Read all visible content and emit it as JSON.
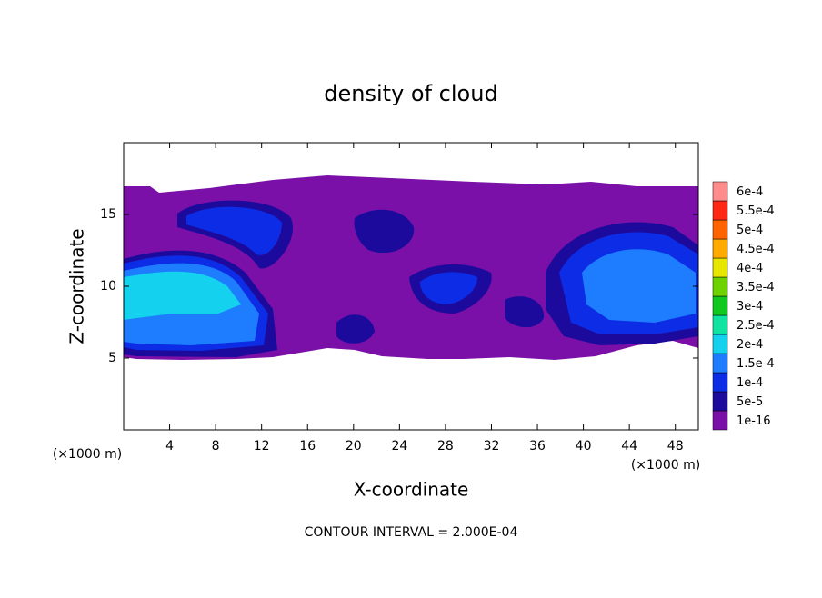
{
  "chart_data": {
    "type": "contour",
    "title": "density of cloud",
    "x_label": "X-coordinate",
    "y_label": "Z-coordinate",
    "x_unit": "(×1000 m)",
    "y_unit": "(×1000 m)",
    "note": "CONTOUR INTERVAL = 2.000E-04",
    "xlim": [
      0,
      50
    ],
    "xticks": [
      4,
      8,
      12,
      16,
      20,
      24,
      28,
      32,
      36,
      40,
      44,
      48
    ],
    "ylim": [
      0,
      20
    ],
    "yticks": [
      5,
      10,
      15
    ],
    "levels": [
      {
        "value": 1e-16,
        "label": "1e-16",
        "color": "#7a10a8"
      },
      {
        "value": 5e-05,
        "label": "5e-5",
        "color": "#1c0a9c"
      },
      {
        "value": 0.0001,
        "label": "1e-4",
        "color": "#0c2ce6"
      },
      {
        "value": 0.00015,
        "label": "1.5e-4",
        "color": "#1e7cff"
      },
      {
        "value": 0.0002,
        "label": "2e-4",
        "color": "#14d2ee"
      },
      {
        "value": 0.00025,
        "label": "2.5e-4",
        "color": "#10e4a0"
      },
      {
        "value": 0.0003,
        "label": "3e-4",
        "color": "#10c81e"
      },
      {
        "value": 0.00035,
        "label": "3.5e-4",
        "color": "#6ed200"
      },
      {
        "value": 0.0004,
        "label": "4e-4",
        "color": "#e6e600"
      },
      {
        "value": 0.00045,
        "label": "4.5e-4",
        "color": "#ffaa00"
      },
      {
        "value": 0.0005,
        "label": "5e-4",
        "color": "#ff6400"
      },
      {
        "value": 0.00055,
        "label": "5.5e-4",
        "color": "#ff2814"
      },
      {
        "value": 0.0006,
        "label": "6e-4",
        "color": "#ff8c8c"
      }
    ]
  }
}
